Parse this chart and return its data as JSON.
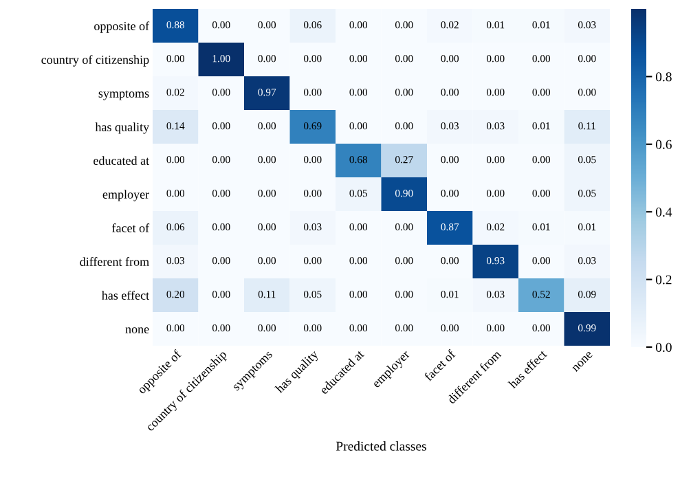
{
  "chart_data": {
    "type": "heatmap",
    "xlabel": "Predicted classes",
    "categories": [
      "opposite of",
      "country of citizenship",
      "symptoms",
      "has quality",
      "educated at",
      "employer",
      "facet of",
      "different from",
      "has effect",
      "none"
    ],
    "y_categories": [
      "opposite of",
      "country of citizenship",
      "symptoms",
      "has quality",
      "educated at",
      "employer",
      "facet of",
      "different from",
      "has effect",
      "none"
    ],
    "cells": [
      [
        0.88,
        0.0,
        0.0,
        0.06,
        0.0,
        0.0,
        0.02,
        0.01,
        0.01,
        0.03
      ],
      [
        0.0,
        1.0,
        0.0,
        0.0,
        0.0,
        0.0,
        0.0,
        0.0,
        0.0,
        0.0
      ],
      [
        0.02,
        0.0,
        0.97,
        0.0,
        0.0,
        0.0,
        0.0,
        0.0,
        0.0,
        0.0
      ],
      [
        0.14,
        0.0,
        0.0,
        0.69,
        0.0,
        0.0,
        0.03,
        0.03,
        0.01,
        0.11
      ],
      [
        0.0,
        0.0,
        0.0,
        0.0,
        0.68,
        0.27,
        0.0,
        0.0,
        0.0,
        0.05
      ],
      [
        0.0,
        0.0,
        0.0,
        0.0,
        0.05,
        0.9,
        0.0,
        0.0,
        0.0,
        0.05
      ],
      [
        0.06,
        0.0,
        0.0,
        0.03,
        0.0,
        0.0,
        0.87,
        0.02,
        0.01,
        0.01
      ],
      [
        0.03,
        0.0,
        0.0,
        0.0,
        0.0,
        0.0,
        0.0,
        0.93,
        0.0,
        0.03
      ],
      [
        0.2,
        0.0,
        0.11,
        0.05,
        0.0,
        0.0,
        0.01,
        0.03,
        0.52,
        0.09
      ],
      [
        0.0,
        0.0,
        0.0,
        0.0,
        0.0,
        0.0,
        0.0,
        0.0,
        0.0,
        0.99
      ]
    ],
    "cell_labels": [
      [
        "0.88",
        "0.00",
        "0.00",
        "0.06",
        "0.00",
        "0.00",
        "0.02",
        "0.01",
        "0.01",
        "0.03"
      ],
      [
        "0.00",
        "1.00",
        "0.00",
        "0.00",
        "0.00",
        "0.00",
        "0.00",
        "0.00",
        "0.00",
        "0.00"
      ],
      [
        "0.02",
        "0.00",
        "0.97",
        "0.00",
        "0.00",
        "0.00",
        "0.00",
        "0.00",
        "0.00",
        "0.00"
      ],
      [
        "0.14",
        "0.00",
        "0.00",
        "0.69",
        "0.00",
        "0.00",
        "0.03",
        "0.03",
        "0.01",
        "0.11"
      ],
      [
        "0.00",
        "0.00",
        "0.00",
        "0.00",
        "0.68",
        "0.27",
        "0.00",
        "0.00",
        "0.00",
        "0.05"
      ],
      [
        "0.00",
        "0.00",
        "0.00",
        "0.00",
        "0.05",
        "0.90",
        "0.00",
        "0.00",
        "0.00",
        "0.05"
      ],
      [
        "0.06",
        "0.00",
        "0.00",
        "0.03",
        "0.00",
        "0.00",
        "0.87",
        "0.02",
        "0.01",
        "0.01"
      ],
      [
        "0.03",
        "0.00",
        "0.00",
        "0.00",
        "0.00",
        "0.00",
        "0.00",
        "0.93",
        "0.00",
        "0.03"
      ],
      [
        "0.20",
        "0.00",
        "0.11",
        "0.05",
        "0.00",
        "0.00",
        "0.01",
        "0.03",
        "0.52",
        "0.09"
      ],
      [
        "0.00",
        "0.00",
        "0.00",
        "0.00",
        "0.00",
        "0.00",
        "0.00",
        "0.00",
        "0.00",
        "0.99"
      ]
    ],
    "clim": [
      0,
      1.0
    ],
    "cticks": [
      {
        "value": 0,
        "label": "0.0"
      },
      {
        "value": 0.2,
        "label": "0.2"
      },
      {
        "value": 0.4,
        "label": "0.4"
      },
      {
        "value": 0.6,
        "label": "0.6"
      },
      {
        "value": 0.8,
        "label": "0.8"
      }
    ]
  }
}
